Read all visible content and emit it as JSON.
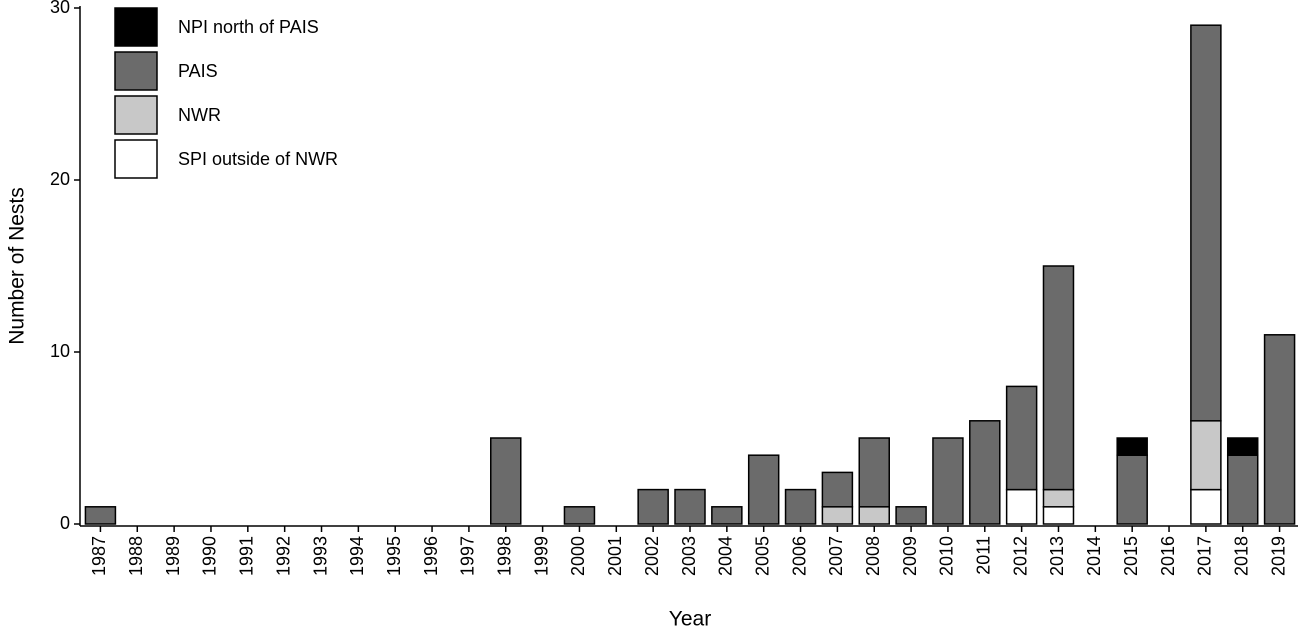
{
  "chart_data": {
    "type": "stacked_bar",
    "x_label": "Year",
    "y_label": "Number of Nests",
    "categories": [
      "1987",
      "1988",
      "1989",
      "1990",
      "1991",
      "1992",
      "1993",
      "1994",
      "1995",
      "1996",
      "1997",
      "1998",
      "1999",
      "2000",
      "2001",
      "2002",
      "2003",
      "2004",
      "2005",
      "2006",
      "2007",
      "2008",
      "2009",
      "2010",
      "2011",
      "2012",
      "2013",
      "2014",
      "2015",
      "2016",
      "2017",
      "2018",
      "2019"
    ],
    "series": [
      {
        "name": "SPI outside of NWR",
        "color": "#ffffff",
        "values": [
          0,
          0,
          0,
          0,
          0,
          0,
          0,
          0,
          0,
          0,
          0,
          0,
          0,
          0,
          0,
          0,
          0,
          0,
          0,
          0,
          0,
          0,
          0,
          0,
          0,
          2,
          1,
          0,
          0,
          0,
          2,
          0,
          0
        ]
      },
      {
        "name": "NWR",
        "color": "#c8c8c8",
        "values": [
          0,
          0,
          0,
          0,
          0,
          0,
          0,
          0,
          0,
          0,
          0,
          0,
          0,
          0,
          0,
          0,
          0,
          0,
          0,
          0,
          1,
          1,
          0,
          0,
          0,
          0,
          1,
          0,
          0,
          0,
          4,
          0,
          0
        ]
      },
      {
        "name": "PAIS",
        "color": "#6b6b6b",
        "values": [
          1,
          0,
          0,
          0,
          0,
          0,
          0,
          0,
          0,
          0,
          0,
          5,
          0,
          1,
          0,
          2,
          2,
          1,
          4,
          2,
          2,
          4,
          1,
          5,
          6,
          6,
          13,
          0,
          4,
          0,
          23,
          4,
          11
        ]
      },
      {
        "name": "NPI north of PAIS",
        "color": "#000000",
        "values": [
          0,
          0,
          0,
          0,
          0,
          0,
          0,
          0,
          0,
          0,
          0,
          0,
          0,
          0,
          0,
          0,
          0,
          0,
          0,
          0,
          0,
          0,
          0,
          0,
          0,
          0,
          0,
          0,
          1,
          0,
          0,
          1,
          0
        ]
      }
    ],
    "ylim": [
      0,
      30
    ],
    "yticks": [
      0,
      10,
      20,
      30
    ],
    "grid": false
  }
}
